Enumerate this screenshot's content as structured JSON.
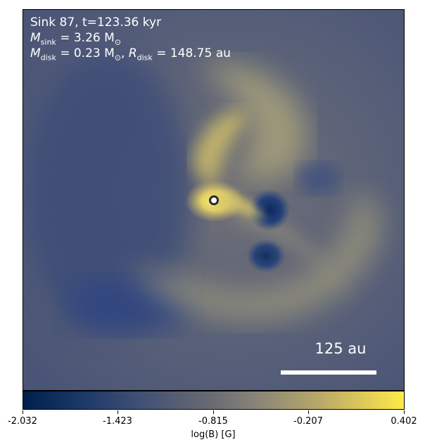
{
  "annotation": {
    "line1": "Sink 87, t=123.36 kyr",
    "msink_symbol": "M",
    "msink_sub": "sink",
    "msink_value": "= 3.26 M",
    "msink_unit_sub": "⊙",
    "mdisk_symbol": "M",
    "mdisk_sub": "disk",
    "mdisk_value": "= 0.23 M",
    "mdisk_unit_sub": "⊙",
    "rdisk_sep": ", ",
    "rdisk_symbol": "R",
    "rdisk_sub": "disk",
    "rdisk_value": "= 148.75 au"
  },
  "scalebar": {
    "label": "125 au"
  },
  "colorbar": {
    "label": "log(B) [G]",
    "ticks": [
      "-2.032",
      "-1.423",
      "-0.815",
      "-0.207",
      "0.402"
    ],
    "colors": [
      "#00204c",
      "#3f4f74",
      "#6b6c72",
      "#b8a96a",
      "#ffea46"
    ]
  }
}
